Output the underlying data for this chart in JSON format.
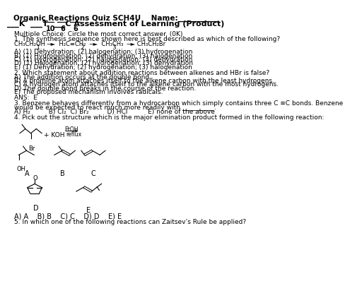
{
  "title": "Organic Reactions Quiz SCH4U    Name:___________",
  "subtitle": "___K  ___T  ___C Assessment of Learning (Product)",
  "scores_k": "10",
  "scores_t": "6",
  "scores_c": "6",
  "mc_header": "Multiple Choice: Circle the most correct answer. (0K)",
  "q1_header": "1. The synthesis sequence shown here is best described as which of the following?",
  "q1_formula": "CH₃CH₂OH ─►  H₂C≡CH₂  ─►  CH₃CH₃  ─► CH₃CH₂Br",
  "q1_nums": "            1.                     2.              3.",
  "q1_A": "A) (1) Dehydration; (2) halogenation; (3) hydrogenation",
  "q1_B": "B) (1) Hydrogenation; (2) dehydration; (3) halogenation",
  "q1_C": "C) (1) Hydrogenation; (2) halogenation; (3) dehydration",
  "q1_D": "D) (1) Halogenation; (2) hydrogenation; (3) dehydration",
  "q1_E": "E) (1) Dehydration; (2) hydrogenation; (3) halogenation",
  "q2_header": "2. Which statement about addition reactions between alkenes and HBr is false?",
  "q2_A": "A) The addition occurs at the double bond.",
  "q2_B": "B) A bromine atom attaches itself to the alkene carbon with the least hydrogens.",
  "q2_C": "C) A hydrogen atom attaches itself to the alkene carbon with the most hydrogens.",
  "q2_D": "D) The double bond breaks in the course of the reaction.",
  "q2_E": "E) The proposed mechanism involves radicals.",
  "ans2": "ANS:  E",
  "q3_line1": "3. Benzene behaves differently from a hydrocarbon which simply contains three C ≡C bonds. Benzene",
  "q3_line2": "would be expected to react much more readily with __________.",
  "q3_ans": "A) H₂         B) Cl₂  C) Br₂         D) HCl          E) none of the above",
  "q4_header": "4. Pick out the structure which is the major elimination product formed in the following reaction:",
  "q4_ans_line": "A) A    B) B    C) C    D) D    E) E",
  "q5": "5. In which one of the following reactions can Zaitsev’s Rule be applied?",
  "bg_color": "#ffffff",
  "text_color": "#000000"
}
